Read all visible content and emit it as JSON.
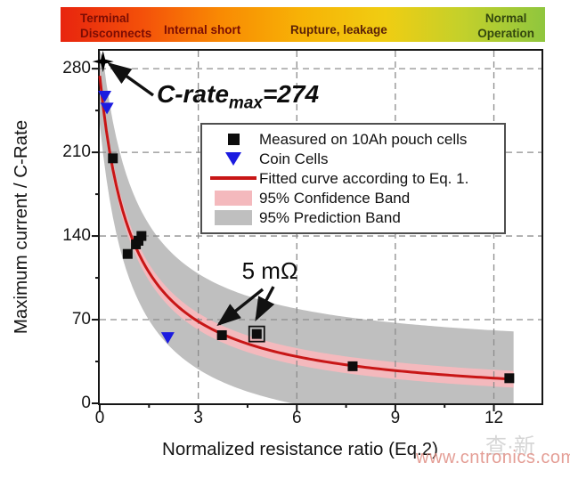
{
  "figure": {
    "hazard_bar": {
      "zones": [
        {
          "label": "Terminal\nDisconnects"
        },
        {
          "label": "Internal short"
        },
        {
          "label": "Rupture, leakage"
        },
        {
          "label": "Normal\nOperation"
        }
      ],
      "gradient_colors": [
        "#e8240e",
        "#f4510a",
        "#f98a03",
        "#f7b306",
        "#f0cd12",
        "#c3d02b",
        "#8fc63e"
      ]
    },
    "annotations": {
      "crate_prefix": "C-rate",
      "crate_sub": "max",
      "crate_value": "=274",
      "resistance": "5 mΩ"
    },
    "watermark": "www.cntronics.com",
    "watermark_cjk": "查·新"
  },
  "chart_data": {
    "type": "scatter",
    "title": "",
    "xlabel": "Normalized resistance ratio (Eq.2)",
    "ylabel": "Maximum current / C-Rate",
    "xlim": [
      0,
      13.45
    ],
    "ylim": [
      0,
      295
    ],
    "xticks": [
      0,
      3,
      6,
      9,
      12
    ],
    "yticks": [
      0,
      70,
      140,
      210,
      280
    ],
    "x_minor_ticks": [
      1.5,
      4.5,
      7.5,
      10.5
    ],
    "y_minor_ticks": [
      35,
      105,
      175,
      245
    ],
    "grid": "dashed",
    "fit": {
      "label": "Fitted curve according to Eq. 1.",
      "formula": "y = 274 / (1 + x)",
      "c_rate_max": 274,
      "x_end": 12.6,
      "confidence_halfwidth": 7,
      "prediction_halfwidth": 40
    },
    "series": [
      {
        "name": "Measured on 10Ah pouch cells",
        "marker": "square",
        "color": "#0d0d0d",
        "points": [
          [
            0.4,
            205
          ],
          [
            0.85,
            125
          ],
          [
            1.1,
            133
          ],
          [
            1.18,
            136
          ],
          [
            1.27,
            140
          ],
          [
            3.72,
            57
          ],
          [
            4.78,
            58
          ],
          [
            7.7,
            31
          ],
          [
            12.47,
            21
          ]
        ]
      },
      {
        "name": "Coin Cells",
        "marker": "triangle-down",
        "color": "#1b1be0",
        "points": [
          [
            0.15,
            257
          ],
          [
            0.22,
            247
          ],
          [
            2.07,
            55
          ]
        ]
      },
      {
        "name": "C-rate max point",
        "marker": "star4",
        "color": "#000000",
        "points": [
          [
            0.1,
            286
          ]
        ]
      }
    ],
    "highlight_open_square_point": [
      4.78,
      58
    ],
    "annotation_arrows": [
      {
        "from": [
          60,
          50
        ],
        "to": [
          11,
          15
        ]
      },
      {
        "from": [
          183,
          268
        ],
        "to": [
          134,
          307
        ]
      },
      {
        "from": [
          195,
          265
        ],
        "to": [
          176,
          301
        ]
      }
    ],
    "colors": {
      "curve": "#c81616",
      "confidence_band": "#f4b9bd",
      "prediction_band": "#bfbfbf",
      "grid": "#8d8d8d",
      "axis": "#151515"
    }
  },
  "legend": {
    "items": [
      {
        "label": "Measured on 10Ah pouch cells"
      },
      {
        "label": "Coin Cells"
      },
      {
        "label": "Fitted curve according to Eq. 1."
      },
      {
        "label": "95% Confidence Band"
      },
      {
        "label": "95% Prediction Band"
      }
    ]
  }
}
